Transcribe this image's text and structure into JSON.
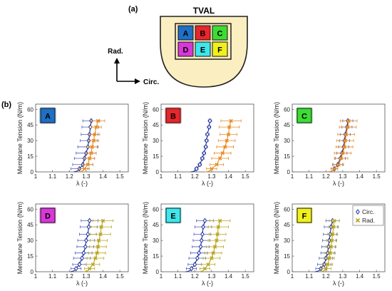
{
  "figure": {
    "label_a": "(a)",
    "label_b": "(b)",
    "tval_title": "TVAL",
    "axis_rad": "Rad.",
    "axis_circ": "Circ."
  },
  "leaflet_tiles": [
    {
      "label": "A",
      "color": "#1f6fc5"
    },
    {
      "label": "B",
      "color": "#e8262b"
    },
    {
      "label": "C",
      "color": "#3ddc35"
    },
    {
      "label": "D",
      "color": "#d838d8"
    },
    {
      "label": "E",
      "color": "#3fe6ec"
    },
    {
      "label": "F",
      "color": "#f0f020"
    }
  ],
  "colors": {
    "circ": "#1f2f9a",
    "circ_err": "#4a5dbd",
    "rad_orange": "#e8891e",
    "rad_olive": "#b8a41c",
    "tval_fill": "#fbeec0"
  },
  "chart_data": [
    {
      "type": "line",
      "panel": "A",
      "xlabel": "λ (-)",
      "ylabel": "Membrane Tension (N/m)",
      "xlim": [
        1,
        1.55
      ],
      "ylim": [
        0,
        65
      ],
      "xticks": [
        "1",
        "1.1",
        "1.2",
        "1.3",
        "1.4",
        "1.5"
      ],
      "yticks": [
        "0",
        "15",
        "30",
        "45",
        "60"
      ],
      "rad_color": "orange",
      "series": [
        {
          "name": "Circ.",
          "x": [
            1.26,
            1.28,
            1.29,
            1.3,
            1.31,
            1.315,
            1.32,
            1.325,
            1.33
          ],
          "y": [
            3,
            7,
            13,
            18,
            24,
            30,
            36,
            43,
            49
          ],
          "err": [
            0.05,
            0.06,
            0.06,
            0.06,
            0.06,
            0.05,
            0.05,
            0.05,
            0.05
          ]
        },
        {
          "name": "Rad.",
          "x": [
            1.29,
            1.31,
            1.32,
            1.33,
            1.335,
            1.345,
            1.35,
            1.36,
            1.37
          ],
          "y": [
            3,
            7,
            13,
            18,
            24,
            30,
            36,
            43,
            49
          ],
          "err": [
            0.03,
            0.03,
            0.03,
            0.03,
            0.03,
            0.03,
            0.03,
            0.03,
            0.04
          ]
        }
      ]
    },
    {
      "type": "line",
      "panel": "B",
      "xlabel": "λ (-)",
      "ylabel": "Membrane Tension (N/m)",
      "xlim": [
        1,
        1.55
      ],
      "ylim": [
        0,
        65
      ],
      "xticks": [
        "1",
        "1.1",
        "1.2",
        "1.3",
        "1.4",
        "1.5"
      ],
      "yticks": [
        "0",
        "15",
        "30",
        "45",
        "60"
      ],
      "rad_color": "orange",
      "series": [
        {
          "name": "Circ.",
          "x": [
            1.21,
            1.23,
            1.245,
            1.255,
            1.265,
            1.27,
            1.275,
            1.285,
            1.29
          ],
          "y": [
            3,
            7,
            13,
            18,
            24,
            30,
            36,
            43,
            49
          ],
          "err": [
            0.01,
            0.01,
            0.01,
            0.01,
            0.01,
            0.01,
            0.01,
            0.01,
            0.01
          ]
        },
        {
          "name": "Rad.",
          "x": [
            1.3,
            1.33,
            1.35,
            1.365,
            1.38,
            1.39,
            1.4,
            1.405,
            1.415
          ],
          "y": [
            3,
            7,
            13,
            18,
            24,
            30,
            36,
            43,
            49
          ],
          "err": [
            0.03,
            0.04,
            0.05,
            0.05,
            0.05,
            0.05,
            0.05,
            0.06,
            0.06
          ]
        }
      ]
    },
    {
      "type": "line",
      "panel": "C",
      "xlabel": "λ (-)",
      "ylabel": "Membrane Tension (N/m)",
      "xlim": [
        1,
        1.55
      ],
      "ylim": [
        0,
        65
      ],
      "xticks": [
        "1",
        "1.1",
        "1.2",
        "1.3",
        "1.4",
        "1.5"
      ],
      "yticks": [
        "0",
        "15",
        "30",
        "45",
        "60"
      ],
      "rad_color": "orange",
      "series": [
        {
          "name": "Circ.",
          "x": [
            1.25,
            1.27,
            1.285,
            1.295,
            1.305,
            1.31,
            1.315,
            1.325,
            1.33
          ],
          "y": [
            3,
            7,
            13,
            18,
            24,
            30,
            36,
            43,
            49
          ],
          "err": [
            0.02,
            0.03,
            0.03,
            0.03,
            0.03,
            0.03,
            0.03,
            0.03,
            0.03
          ]
        },
        {
          "name": "Rad.",
          "x": [
            1.25,
            1.275,
            1.29,
            1.3,
            1.31,
            1.315,
            1.32,
            1.33,
            1.335
          ],
          "y": [
            3,
            7,
            13,
            18,
            24,
            30,
            36,
            43,
            49
          ],
          "err": [
            0.02,
            0.03,
            0.04,
            0.05,
            0.05,
            0.05,
            0.05,
            0.05,
            0.05
          ]
        }
      ]
    },
    {
      "type": "line",
      "panel": "D",
      "xlabel": "λ (-)",
      "ylabel": "Membrane Tension (N/m)",
      "xlim": [
        1,
        1.55
      ],
      "ylim": [
        0,
        65
      ],
      "xticks": [
        "1",
        "1.1",
        "1.2",
        "1.3",
        "1.4",
        "1.5"
      ],
      "yticks": [
        "0",
        "15",
        "30",
        "45",
        "60"
      ],
      "rad_color": "olive",
      "series": [
        {
          "name": "Circ.",
          "x": [
            1.24,
            1.26,
            1.275,
            1.285,
            1.295,
            1.3,
            1.31,
            1.315,
            1.32
          ],
          "y": [
            3,
            7,
            13,
            18,
            24,
            30,
            36,
            43,
            49
          ],
          "err": [
            0.03,
            0.04,
            0.05,
            0.05,
            0.05,
            0.05,
            0.05,
            0.05,
            0.05
          ]
        },
        {
          "name": "Rad.",
          "x": [
            1.32,
            1.34,
            1.355,
            1.365,
            1.37,
            1.375,
            1.385,
            1.39,
            1.4
          ],
          "y": [
            3,
            7,
            13,
            18,
            24,
            30,
            36,
            43,
            49
          ],
          "err": [
            0.03,
            0.04,
            0.05,
            0.05,
            0.05,
            0.05,
            0.06,
            0.06,
            0.06
          ]
        }
      ]
    },
    {
      "type": "line",
      "panel": "E",
      "xlabel": "λ (-)",
      "ylabel": "Membrane Tension (N/m)",
      "xlim": [
        1,
        1.55
      ],
      "ylim": [
        0,
        65
      ],
      "xticks": [
        "1",
        "1.1",
        "1.2",
        "1.3",
        "1.4",
        "1.5"
      ],
      "yticks": [
        "0",
        "15",
        "30",
        "45",
        "60"
      ],
      "rad_color": "olive",
      "series": [
        {
          "name": "Circ.",
          "x": [
            1.18,
            1.2,
            1.215,
            1.225,
            1.235,
            1.24,
            1.245,
            1.25,
            1.26
          ],
          "y": [
            3,
            7,
            13,
            18,
            24,
            30,
            36,
            43,
            49
          ],
          "err": [
            0.03,
            0.04,
            0.05,
            0.05,
            0.05,
            0.05,
            0.05,
            0.05,
            0.05
          ]
        },
        {
          "name": "Rad.",
          "x": [
            1.26,
            1.28,
            1.3,
            1.31,
            1.32,
            1.33,
            1.335,
            1.34,
            1.35
          ],
          "y": [
            3,
            7,
            13,
            18,
            24,
            30,
            36,
            43,
            49
          ],
          "err": [
            0.03,
            0.04,
            0.05,
            0.05,
            0.05,
            0.05,
            0.05,
            0.06,
            0.06
          ]
        }
      ]
    },
    {
      "type": "line",
      "panel": "F",
      "xlabel": "λ (-)",
      "ylabel": "Membrane Tension (N/m)",
      "xlim": [
        1,
        1.55
      ],
      "ylim": [
        0,
        65
      ],
      "xticks": [
        "1",
        "1.1",
        "1.2",
        "1.3",
        "1.4",
        "1.5"
      ],
      "yticks": [
        "0",
        "15",
        "30",
        "45",
        "60"
      ],
      "rad_color": "olive",
      "legend": {
        "position": "top-right",
        "entries": [
          "Circ.",
          "Rad."
        ]
      },
      "series": [
        {
          "name": "Circ.",
          "x": [
            1.17,
            1.19,
            1.2,
            1.21,
            1.215,
            1.22,
            1.225,
            1.23,
            1.24
          ],
          "y": [
            3,
            7,
            13,
            18,
            24,
            30,
            36,
            43,
            49
          ],
          "err": [
            0.03,
            0.04,
            0.04,
            0.04,
            0.04,
            0.04,
            0.04,
            0.04,
            0.04
          ]
        },
        {
          "name": "Rad.",
          "x": [
            1.2,
            1.21,
            1.22,
            1.225,
            1.23,
            1.235,
            1.24,
            1.245,
            1.25
          ],
          "y": [
            3,
            7,
            13,
            18,
            24,
            30,
            36,
            43,
            49
          ],
          "err": [
            0.03,
            0.03,
            0.03,
            0.03,
            0.03,
            0.03,
            0.03,
            0.03,
            0.03
          ]
        }
      ]
    }
  ]
}
